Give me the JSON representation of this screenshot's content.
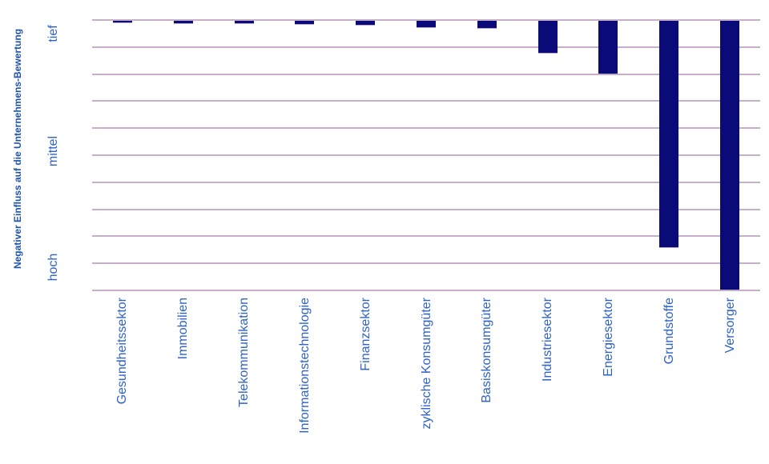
{
  "chart_data": {
    "type": "bar",
    "orientation": "vertical",
    "direction": "downward-from-zero-line",
    "title": "",
    "ylabel": "Negativer Einfluss auf die Unternehmens-Bewertung",
    "xlabel": "",
    "categories": [
      "Gesundheitssektor",
      "Immobilien",
      "Telekommunikation",
      "Informationstechnologie",
      "Finanzsektor",
      "zyklische Konsumgüter",
      "Basiskonsumgüter",
      "Industriesektor",
      "Energiesektor",
      "Grundstoffe",
      "Versorger"
    ],
    "values": [
      0.12,
      0.14,
      0.16,
      0.19,
      0.2,
      0.3,
      0.33,
      1.24,
      2.0,
      8.43,
      10.0
    ],
    "ylim": [
      0,
      10
    ],
    "gridline_count": 11,
    "grid": true,
    "legend": false,
    "y_ticks": [
      {
        "label": "tief",
        "position": 0.5
      },
      {
        "label": "mittel",
        "position": 4.85
      },
      {
        "label": "hoch",
        "position": 9.15
      }
    ],
    "colors": {
      "bar": "#0a0a78",
      "bar_border": "#b9a8c9",
      "gridline": "#c6afc9",
      "tick_label": "#2d62c7",
      "category_label": "#2d62c7",
      "axis_title": "#1e52b0",
      "background": "#ffffff"
    }
  }
}
